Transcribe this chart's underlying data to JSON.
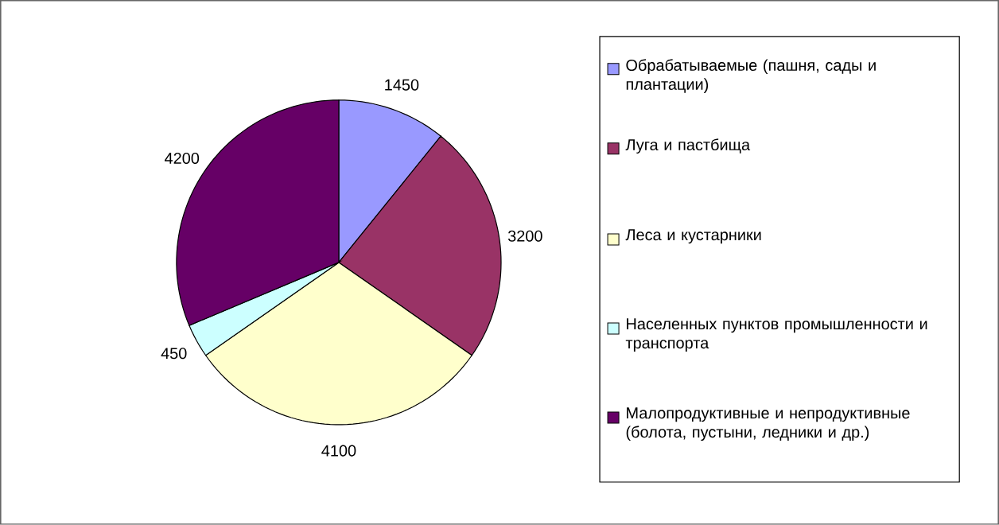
{
  "chart_data": {
    "type": "pie",
    "categories": [
      "Обрабатываемые (пашня, сады и плантации)",
      "Луга и пастбища",
      "Леса и кустарники",
      "Населенных пунктов промышленности и транспорта",
      "Малопродуктивные и непродуктивные (болота, пустыни, ледники и др.)"
    ],
    "values": [
      1450,
      3200,
      4100,
      450,
      4200
    ],
    "colors": [
      "#9999ff",
      "#993366",
      "#ffffcc",
      "#ccffff",
      "#660066"
    ],
    "data_labels": true,
    "legend": "right"
  }
}
